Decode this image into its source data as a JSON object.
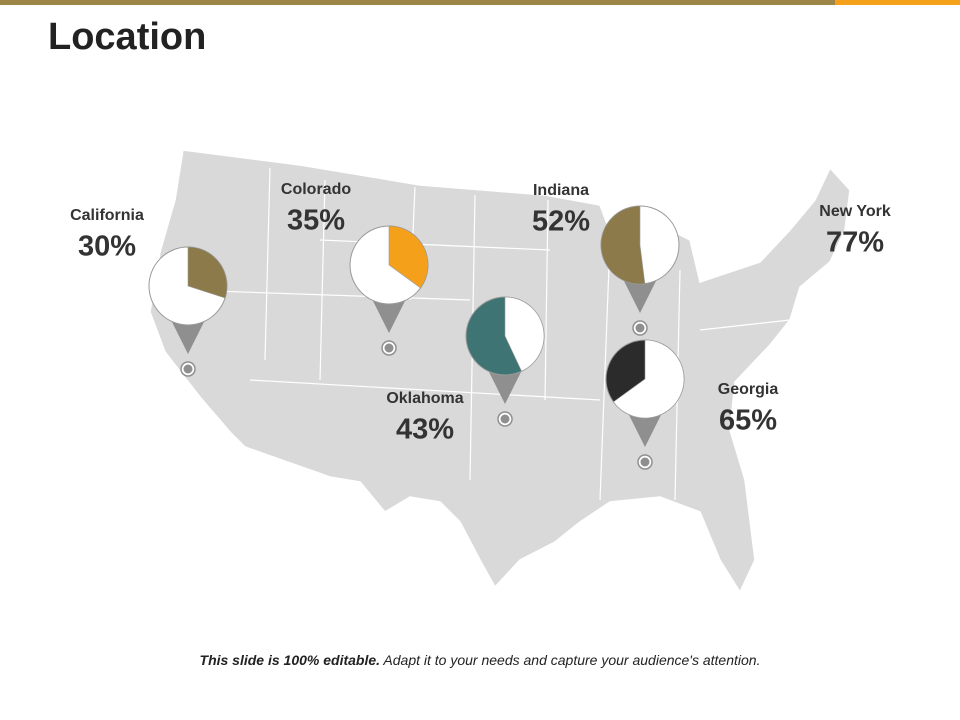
{
  "header": {
    "title": "Location"
  },
  "locations": [
    {
      "name": "California",
      "label": "30%",
      "value": 30,
      "color": "#8c7a4b",
      "rest_color": "#ffffff",
      "clockwise": true
    },
    {
      "name": "Colorado",
      "label": "35%",
      "value": 35,
      "color": "#f5a01a",
      "rest_color": "#ffffff",
      "clockwise": true
    },
    {
      "name": "Oklahoma",
      "label": "43%",
      "value": 43,
      "color": "#ffffff",
      "rest_color": "#3e7474",
      "clockwise": true
    },
    {
      "name": "Indiana",
      "label": "52%",
      "value": 52,
      "color": "#8c7a4b",
      "rest_color": "#ffffff",
      "clockwise": false
    },
    {
      "name": "Georgia",
      "label": "65%",
      "value": 65,
      "color": "#ffffff",
      "rest_color": "#2b2b2b",
      "clockwise": true
    },
    {
      "name": "New York",
      "label": "77%"
    }
  ],
  "footer": {
    "bold": "This slide is 100% editable.",
    "text": "Adapt it to your needs and capture your audience's attention."
  }
}
